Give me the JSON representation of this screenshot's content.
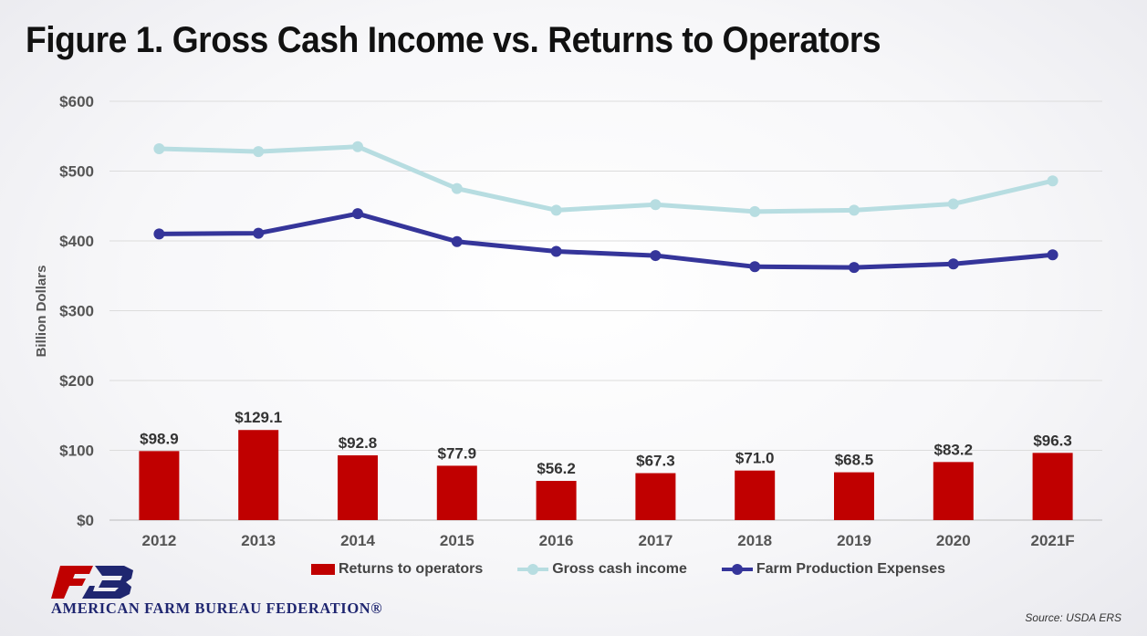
{
  "title": "Figure 1. Gross Cash Income vs. Returns to Operators",
  "source": "Source: USDA ERS",
  "logo_text": "AMERICAN FARM BUREAU FEDERATION®",
  "colors": {
    "returns": "#c00000",
    "gross": "#b7dde1",
    "expenses": "#35359a",
    "logo_red": "#c00000",
    "logo_navy": "#1f2670"
  },
  "chart_data": {
    "type": "bar",
    "categories": [
      "2012",
      "2013",
      "2014",
      "2015",
      "2016",
      "2017",
      "2018",
      "2019",
      "2020",
      "2021F"
    ],
    "ylabel": "Billion Dollars",
    "ylim": [
      0,
      600
    ],
    "yticks": [
      0,
      100,
      200,
      300,
      400,
      500,
      600
    ],
    "ytick_labels": [
      "$0",
      "$100",
      "$200",
      "$300",
      "$400",
      "$500",
      "$600"
    ],
    "grid": true,
    "legend_position": "bottom",
    "series": [
      {
        "name": "Returns to operators",
        "type": "bar",
        "values": [
          98.9,
          129.1,
          92.8,
          77.9,
          56.2,
          67.3,
          71.0,
          68.5,
          83.2,
          96.3
        ],
        "labels": [
          "$98.9",
          "$129.1",
          "$92.8",
          "$77.9",
          "$56.2",
          "$67.3",
          "$71.0",
          "$68.5",
          "$83.2",
          "$96.3"
        ]
      },
      {
        "name": "Gross cash income",
        "type": "line",
        "values": [
          532,
          528,
          535,
          475,
          444,
          452,
          442,
          444,
          453,
          486
        ]
      },
      {
        "name": "Farm Production Expenses",
        "type": "line",
        "values": [
          410,
          411,
          439,
          399,
          385,
          379,
          363,
          362,
          367,
          380
        ]
      }
    ]
  }
}
